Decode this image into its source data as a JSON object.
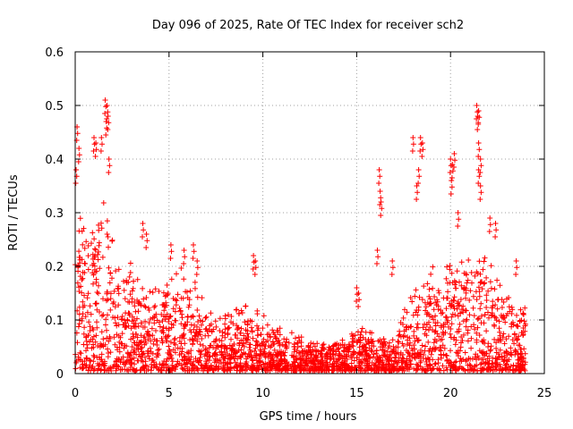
{
  "chart_data": {
    "type": "scatter",
    "title": "Day 096 of 2025, Rate Of TEC Index for receiver sch2",
    "xlabel": "GPS time / hours",
    "ylabel": "ROTI / TECUs",
    "xlim": [
      0,
      25
    ],
    "ylim": [
      0,
      0.6
    ],
    "xticks": [
      0,
      5,
      10,
      15,
      20,
      25
    ],
    "yticks": [
      0,
      0.1,
      0.2,
      0.3,
      0.4,
      0.5,
      0.6
    ],
    "xtick_labels": [
      "0",
      "5",
      "10",
      "15",
      "20",
      "25"
    ],
    "ytick_labels": [
      "0",
      "0.1",
      "0.2",
      "0.3",
      "0.4",
      "0.5",
      "0.6"
    ],
    "grid": true,
    "marker": "+",
    "color": "#ff0000",
    "series": [
      {
        "name": "ROTI",
        "envelope_hours": [
          0,
          0.5,
          1,
          1.5,
          2,
          2.5,
          3,
          3.5,
          4,
          4.5,
          5,
          5.5,
          6,
          6.5,
          7,
          7.5,
          8,
          8.5,
          9,
          9.5,
          10,
          10.5,
          11,
          11.5,
          12,
          12.5,
          13,
          13.5,
          14,
          14.5,
          15,
          15.5,
          16,
          16.5,
          17,
          17.5,
          18,
          18.5,
          19,
          19.5,
          20,
          20.5,
          21,
          21.5,
          22,
          22.5,
          23,
          23.5,
          24
        ],
        "envelope_max": [
          0.3,
          0.26,
          0.28,
          0.32,
          0.24,
          0.17,
          0.19,
          0.16,
          0.15,
          0.15,
          0.17,
          0.18,
          0.18,
          0.16,
          0.11,
          0.1,
          0.1,
          0.12,
          0.13,
          0.12,
          0.11,
          0.08,
          0.08,
          0.07,
          0.06,
          0.06,
          0.05,
          0.05,
          0.06,
          0.06,
          0.08,
          0.08,
          0.07,
          0.06,
          0.07,
          0.1,
          0.16,
          0.17,
          0.19,
          0.18,
          0.2,
          0.21,
          0.22,
          0.22,
          0.2,
          0.18,
          0.16,
          0.13,
          0.11
        ],
        "spikes": [
          {
            "x": 0.1,
            "y": 0.46
          },
          {
            "x": 0.2,
            "y": 0.42
          },
          {
            "x": 0.05,
            "y": 0.38
          },
          {
            "x": 1.0,
            "y": 0.44
          },
          {
            "x": 1.1,
            "y": 0.43
          },
          {
            "x": 1.4,
            "y": 0.44
          },
          {
            "x": 1.6,
            "y": 0.51
          },
          {
            "x": 1.7,
            "y": 0.5
          },
          {
            "x": 1.65,
            "y": 0.47
          },
          {
            "x": 1.75,
            "y": 0.48
          },
          {
            "x": 1.8,
            "y": 0.4
          },
          {
            "x": 3.6,
            "y": 0.28
          },
          {
            "x": 3.8,
            "y": 0.26
          },
          {
            "x": 5.1,
            "y": 0.24
          },
          {
            "x": 5.8,
            "y": 0.23
          },
          {
            "x": 6.3,
            "y": 0.24
          },
          {
            "x": 6.5,
            "y": 0.21
          },
          {
            "x": 9.5,
            "y": 0.22
          },
          {
            "x": 9.6,
            "y": 0.21
          },
          {
            "x": 15.0,
            "y": 0.16
          },
          {
            "x": 15.1,
            "y": 0.15
          },
          {
            "x": 16.2,
            "y": 0.38
          },
          {
            "x": 16.25,
            "y": 0.34
          },
          {
            "x": 16.3,
            "y": 0.32
          },
          {
            "x": 16.1,
            "y": 0.23
          },
          {
            "x": 16.9,
            "y": 0.21
          },
          {
            "x": 18.0,
            "y": 0.44
          },
          {
            "x": 18.4,
            "y": 0.44
          },
          {
            "x": 18.5,
            "y": 0.43
          },
          {
            "x": 18.3,
            "y": 0.38
          },
          {
            "x": 18.2,
            "y": 0.35
          },
          {
            "x": 20.0,
            "y": 0.4
          },
          {
            "x": 20.1,
            "y": 0.39
          },
          {
            "x": 20.2,
            "y": 0.41
          },
          {
            "x": 20.05,
            "y": 0.36
          },
          {
            "x": 20.4,
            "y": 0.3
          },
          {
            "x": 21.4,
            "y": 0.5
          },
          {
            "x": 21.5,
            "y": 0.49
          },
          {
            "x": 21.45,
            "y": 0.48
          },
          {
            "x": 21.5,
            "y": 0.43
          },
          {
            "x": 21.6,
            "y": 0.4
          },
          {
            "x": 21.5,
            "y": 0.38
          },
          {
            "x": 21.6,
            "y": 0.35
          },
          {
            "x": 22.1,
            "y": 0.29
          },
          {
            "x": 22.4,
            "y": 0.28
          },
          {
            "x": 23.5,
            "y": 0.21
          },
          {
            "x": 23.9,
            "y": 0.11
          }
        ]
      }
    ]
  }
}
